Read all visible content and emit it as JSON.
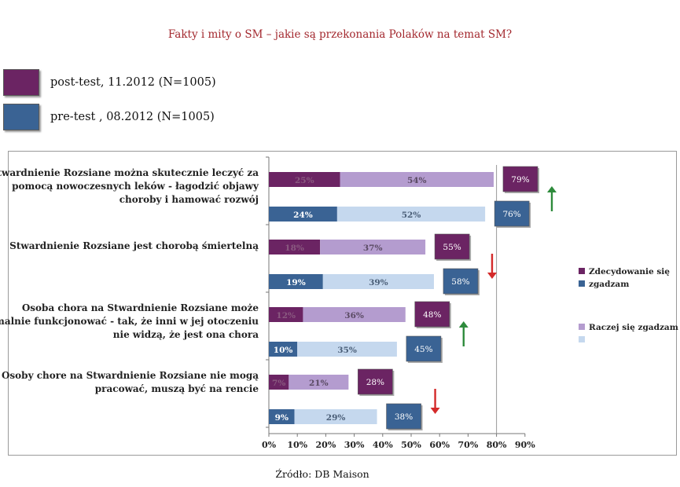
{
  "header": {
    "title": "Fakty i mity o SM – jakie są przekonania Polaków na temat SM?",
    "legend": [
      {
        "label": "post-test, 11.2012 (N=1005)",
        "color": "#6b2463"
      },
      {
        "label": "pre-test , 08.2012 (N=1005)",
        "color": "#3a6394"
      }
    ]
  },
  "footer": {
    "source": "Źródło: DB Maison"
  },
  "chart_data": {
    "type": "bar",
    "orientation": "horizontal",
    "stacked": true,
    "x_ticks": [
      "0%",
      "10%",
      "20%",
      "30%",
      "40%",
      "50%",
      "60%",
      "70%",
      "80%",
      "90%"
    ],
    "xlim": [
      0,
      90
    ],
    "grid": false,
    "legend_position": "right",
    "legend": [
      {
        "label": "Zdecydowanie się",
        "color": "#6b2463"
      },
      {
        "label": "zgadzam",
        "color": "#3a6394"
      },
      {
        "label": "Raczej się zgadzam",
        "color": "#b49ccf"
      },
      {
        "label": "",
        "color": "#c5d8ee"
      }
    ],
    "colors": {
      "post_strong": "#6b2463",
      "post_rather": "#b49ccf",
      "pre_strong": "#3a6394",
      "pre_rather": "#c5d8ee",
      "arrow_up": "#2e8b3c",
      "arrow_down": "#d42a2a"
    },
    "categories": [
      {
        "label": [
          "Stwardnienie Rozsiane można skutecznie leczyć za",
          "pomocą nowoczesnych leków - łagodzić objawy",
          "choroby i hamować rozwój"
        ],
        "bars": [
          {
            "series": "post-test",
            "strong": 25,
            "rather": 54,
            "strong_label": "25%",
            "rather_label": "54%",
            "total": 79,
            "total_label": "79%"
          },
          {
            "series": "pre-test",
            "strong": 24,
            "rather": 52,
            "strong_label": "24%",
            "rather_label": "52%",
            "total": 76,
            "total_label": "76%"
          }
        ],
        "trend": "up"
      },
      {
        "label": [
          "Stwardnienie Rozsiane jest chorobą śmiertelną"
        ],
        "bars": [
          {
            "series": "post-test",
            "strong": 18,
            "rather": 37,
            "strong_label": "18%",
            "rather_label": "37%",
            "total": 55,
            "total_label": "55%"
          },
          {
            "series": "pre-test",
            "strong": 19,
            "rather": 39,
            "strong_label": "19%",
            "rather_label": "39%",
            "total": 58,
            "total_label": "58%"
          }
        ],
        "trend": "down"
      },
      {
        "label": [
          "Osoba chora na Stwardnienie Rozsiane może",
          "normalnie funkcjonować - tak, że inni w jej otoczeniu",
          "nie widzą, że jest ona chora"
        ],
        "bars": [
          {
            "series": "post-test",
            "strong": 12,
            "rather": 36,
            "strong_label": "12%",
            "rather_label": "36%",
            "total": 48,
            "total_label": "48%"
          },
          {
            "series": "pre-test",
            "strong": 10,
            "rather": 35,
            "strong_label": "10%",
            "rather_label": "35%",
            "total": 45,
            "total_label": "45%"
          }
        ],
        "trend": "up"
      },
      {
        "label": [
          "Osoby chore na Stwardnienie Rozsiane nie mogą",
          "pracować, muszą być na rencie"
        ],
        "bars": [
          {
            "series": "post-test",
            "strong": 7,
            "rather": 21,
            "strong_label": "7%",
            "rather_label": "21%",
            "total": 28,
            "total_label": "28%"
          },
          {
            "series": "pre-test",
            "strong": 9,
            "rather": 29,
            "strong_label": "9%",
            "rather_label": "29%",
            "total": 38,
            "total_label": "38%"
          }
        ],
        "trend": "down"
      }
    ]
  }
}
